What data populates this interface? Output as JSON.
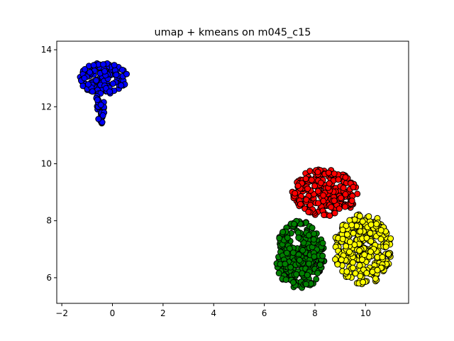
{
  "chart_data": {
    "type": "scatter",
    "title": "umap + kmeans on m045_c15",
    "xlabel": "",
    "ylabel": "",
    "xlim": [
      -2.2,
      11.7
    ],
    "ylim": [
      5.1,
      14.3
    ],
    "xticks": [
      -2,
      0,
      2,
      4,
      6,
      8,
      10
    ],
    "yticks": [
      6,
      8,
      10,
      12,
      14
    ],
    "grid": false,
    "legend": "none",
    "clusters": [
      {
        "color": "#0000ff",
        "shape": "blob",
        "n": 150,
        "cx": -0.35,
        "cy": 13.0,
        "rx": 0.95,
        "ry": 0.55,
        "tail": {
          "n": 30,
          "x0": -0.45,
          "y0": 12.3,
          "x1": -0.45,
          "y1": 11.4,
          "spread": 0.2
        }
      },
      {
        "color": "#ff0000",
        "shape": "blob",
        "n": 240,
        "cx": 8.4,
        "cy": 9.0,
        "rx": 1.3,
        "ry": 0.85
      },
      {
        "color": "#008000",
        "shape": "blob",
        "n": 300,
        "cx": 7.4,
        "cy": 6.8,
        "rx": 1.0,
        "ry": 1.2
      },
      {
        "color": "#ffff00",
        "shape": "blob",
        "n": 300,
        "cx": 9.9,
        "cy": 7.0,
        "rx": 1.15,
        "ry": 1.25
      }
    ]
  }
}
